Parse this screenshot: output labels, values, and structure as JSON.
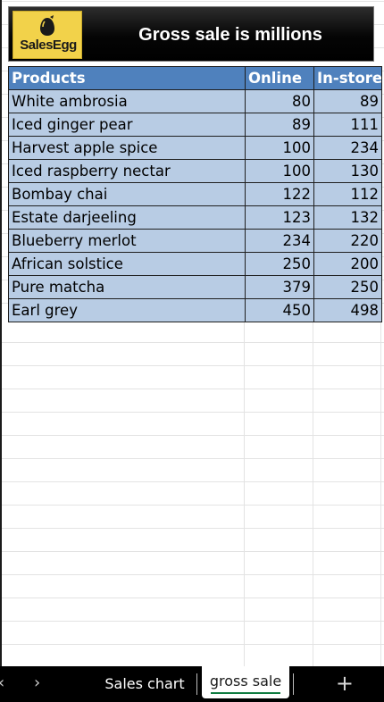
{
  "banner": {
    "logo_text": "SalesEgg",
    "title": "Gross sale is millions"
  },
  "table": {
    "headers": [
      "Products",
      "Online",
      "In-store"
    ],
    "rows": [
      [
        "White ambrosia",
        "80",
        "89"
      ],
      [
        "Iced ginger pear",
        "89",
        "111"
      ],
      [
        "Harvest apple spice",
        "100",
        "234"
      ],
      [
        "Iced raspberry nectar",
        "100",
        "130"
      ],
      [
        "Bombay chai",
        "122",
        "112"
      ],
      [
        "Estate darjeeling",
        "123",
        "132"
      ],
      [
        "Blueberry merlot",
        "234",
        "220"
      ],
      [
        "African solstice",
        "250",
        "200"
      ],
      [
        "Pure matcha",
        "379",
        "250"
      ],
      [
        "Earl grey",
        "450",
        "498"
      ]
    ]
  },
  "tabs": {
    "prev": "‹",
    "next": "›",
    "items": [
      "Sales chart",
      "gross sale"
    ],
    "active": "gross sale",
    "add": "+"
  },
  "colors": {
    "header_bg": "#4f81bd",
    "row_bg": "#b8cce4",
    "logo_bg": "#f2d24a",
    "active_tab_underline": "#107c41"
  }
}
